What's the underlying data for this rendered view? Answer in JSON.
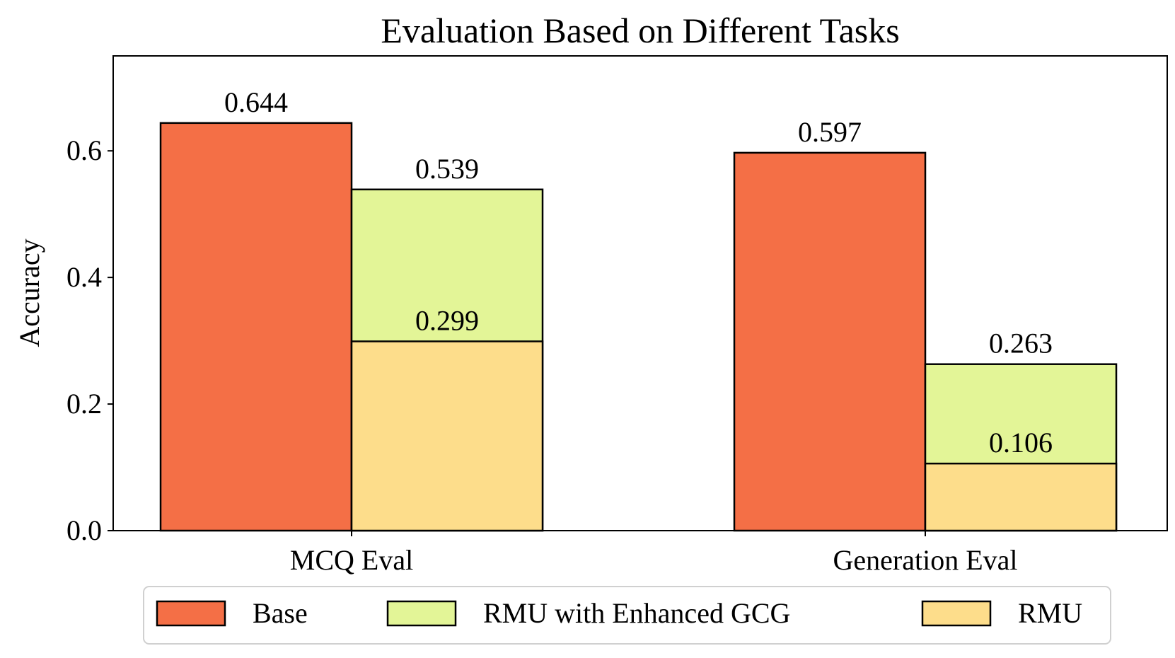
{
  "chart_data": {
    "type": "bar",
    "title": "Evaluation Based on Different Tasks",
    "xlabel": "",
    "ylabel": "Accuracy",
    "ylim": [
      0,
      0.75
    ],
    "yticks": [
      0.0,
      0.2,
      0.4,
      0.6
    ],
    "ytick_labels": [
      "0.0",
      "0.2",
      "0.4",
      "0.6"
    ],
    "categories": [
      "MCQ Eval",
      "Generation Eval"
    ],
    "series": [
      {
        "name": "Base",
        "color": "#f46f46",
        "values": [
          0.644,
          0.597
        ],
        "labels": [
          "0.644",
          "0.597"
        ],
        "slot": 0
      },
      {
        "name": "RMU with Enhanced GCG",
        "color": "#e3f597",
        "values": [
          0.539,
          0.263
        ],
        "labels": [
          "0.539",
          "0.263"
        ],
        "slot": 1
      },
      {
        "name": "RMU",
        "color": "#fddd8b",
        "values": [
          0.299,
          0.106
        ],
        "labels": [
          "0.299",
          "0.106"
        ],
        "slot": 1
      }
    ],
    "legend": {
      "placement": "bottom-center",
      "entries": [
        "Base",
        "RMU with Enhanced GCG",
        "RMU"
      ]
    },
    "grid": false
  }
}
